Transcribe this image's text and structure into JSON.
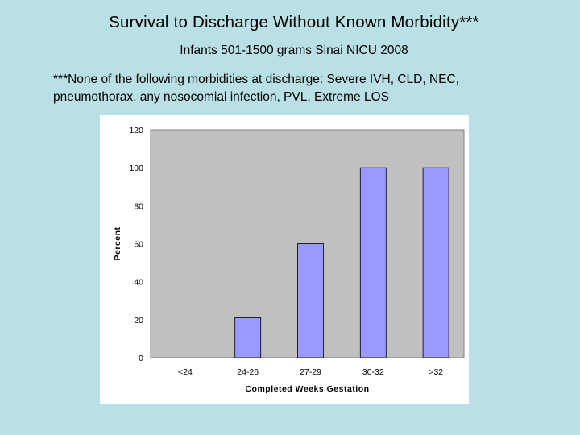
{
  "slide": {
    "title": "Survival to Discharge Without Known Morbidity***",
    "subtitle": "Infants 501-1500 grams Sinai NICU 2008",
    "note": "***None of the following morbidities at discharge: Severe IVH, CLD, NEC, pneumothorax, any nosocomial infection, PVL, Extreme LOS"
  },
  "chart_data": {
    "type": "bar",
    "categories": [
      "<24",
      "24-26",
      "27-29",
      "30-32",
      ">32"
    ],
    "values": [
      0,
      21,
      60,
      100,
      100
    ],
    "title": "",
    "xlabel": "Completed Weeks Gestation",
    "ylabel": "Percent",
    "ylim": [
      0,
      120
    ],
    "yticks": [
      0,
      20,
      40,
      60,
      80,
      100,
      120
    ],
    "grid": false,
    "legend": "none",
    "colors": {
      "bar": "#9999ff",
      "plot_background": "#c0c0c0",
      "chart_background": "#ffffff"
    }
  }
}
